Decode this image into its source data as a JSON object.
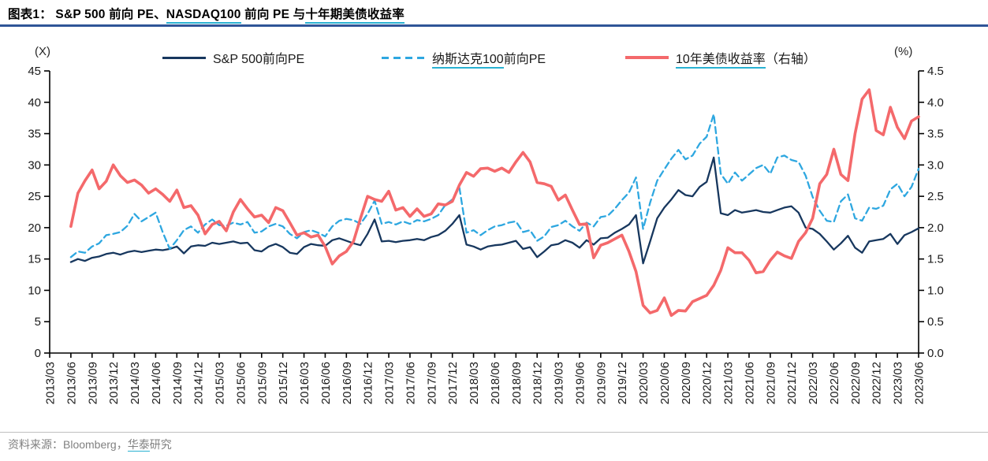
{
  "header": {
    "title_parts": [
      {
        "text": "图表1：  S&P 500 前向 PE、",
        "u": false
      },
      {
        "text": "NASDAQ100",
        "u": true
      },
      {
        "text": " 前向 PE 与",
        "u": false
      },
      {
        "text": "十年期美债收益率",
        "u": true
      }
    ]
  },
  "legend": {
    "left_unit": "(X)",
    "right_unit": "(%)",
    "items": [
      {
        "swatch": "solid-line",
        "color": "#17375e",
        "thickness": 3,
        "label_parts": [
          {
            "text": "S&P 500前向PE",
            "u": false
          }
        ]
      },
      {
        "swatch": "dashed-line",
        "color": "#2ea7e0",
        "thickness": 3,
        "label_parts": [
          {
            "text": "纳斯达克100",
            "u": true
          },
          {
            "text": "前向PE",
            "u": false
          }
        ]
      },
      {
        "swatch": "solid-line",
        "color": "#f4696b",
        "thickness": 4,
        "label_parts": [
          {
            "text": "10年美债收益率",
            "u": true
          },
          {
            "text": "（右轴）",
            "u": false
          }
        ]
      }
    ]
  },
  "chart_data": {
    "type": "line",
    "title": "S&P 500 前向 PE、NASDAQ100 前向 PE 与十年期美债收益率",
    "grid": false,
    "legend_position": "top",
    "left_axis": {
      "unit": "(X)",
      "min": 0,
      "max": 45,
      "step": 5,
      "tick_labels": [
        "0",
        "5",
        "10",
        "15",
        "20",
        "25",
        "30",
        "35",
        "40",
        "45"
      ]
    },
    "right_axis": {
      "unit": "(%)",
      "min": 0.0,
      "max": 4.5,
      "step": 0.5,
      "tick_labels": [
        "0.0",
        "0.5",
        "1.0",
        "1.5",
        "2.0",
        "2.5",
        "3.0",
        "3.5",
        "4.0",
        "4.5"
      ]
    },
    "x_axis": {
      "first_label": "2013/03",
      "last_label": "2023/06",
      "months_total": 123,
      "tick_every_months": 3,
      "tick_labels": [
        "2013/03",
        "2013/06",
        "2013/09",
        "2013/12",
        "2014/03",
        "2014/06",
        "2014/09",
        "2014/12",
        "2015/03",
        "2015/06",
        "2015/09",
        "2015/12",
        "2016/03",
        "2016/06",
        "2016/09",
        "2016/12",
        "2017/03",
        "2017/06",
        "2017/09",
        "2017/12",
        "2018/03",
        "2018/06",
        "2018/09",
        "2018/12",
        "2019/03",
        "2019/06",
        "2019/09",
        "2019/12",
        "2020/03",
        "2020/06",
        "2020/09",
        "2020/12",
        "2021/03",
        "2021/06",
        "2021/09",
        "2021/12",
        "2022/03",
        "2022/06",
        "2022/09",
        "2022/12",
        "2023/03",
        "2023/06"
      ]
    },
    "series": [
      {
        "name": "S&P 500前向PE",
        "axis": "left",
        "color": "#17375e",
        "dash": false,
        "width": 2.3,
        "start_label": "2013/06",
        "start_month": 3,
        "interval": "monthly",
        "values": [
          14.5,
          15.0,
          14.7,
          15.2,
          15.4,
          15.8,
          16.0,
          15.7,
          16.1,
          16.3,
          16.1,
          16.3,
          16.5,
          16.4,
          16.6,
          17.0,
          15.9,
          17.0,
          17.2,
          17.1,
          17.6,
          17.4,
          17.6,
          17.8,
          17.5,
          17.6,
          16.4,
          16.2,
          17.0,
          17.4,
          16.9,
          16.0,
          15.8,
          16.9,
          17.4,
          17.2,
          17.1,
          18.0,
          18.3,
          17.9,
          17.5,
          17.2,
          19.0,
          21.3,
          17.8,
          17.9,
          17.7,
          17.9,
          18.0,
          18.2,
          18.0,
          18.5,
          18.8,
          19.5,
          20.6,
          22.0,
          17.3,
          17.0,
          16.5,
          17.0,
          17.2,
          17.3,
          17.6,
          17.9,
          16.6,
          16.9,
          15.3,
          16.2,
          17.2,
          17.4,
          18.0,
          17.6,
          16.8,
          18.0,
          17.3,
          18.3,
          18.4,
          19.2,
          19.8,
          20.5,
          22.0,
          14.3,
          17.8,
          21.5,
          23.2,
          24.5,
          26.0,
          25.2,
          25.0,
          26.5,
          27.3,
          31.2,
          22.3,
          22.0,
          22.8,
          22.4,
          22.6,
          22.8,
          22.5,
          22.4,
          22.8,
          23.2,
          23.4,
          22.4,
          20.0,
          19.8,
          19.0,
          17.8,
          16.5,
          17.5,
          18.7,
          16.8,
          16.0,
          17.8,
          18.0,
          18.2,
          19.0,
          17.4,
          18.8,
          19.3,
          19.9
        ]
      },
      {
        "name": "纳斯达克100前向PE",
        "axis": "left",
        "color": "#2ea7e0",
        "dash": true,
        "width": 2.3,
        "start_label": "2013/06",
        "start_month": 3,
        "interval": "monthly",
        "values": [
          15.3,
          16.2,
          16.0,
          17.0,
          17.5,
          18.8,
          19.0,
          19.3,
          20.3,
          22.2,
          21.0,
          21.7,
          22.4,
          19.3,
          16.6,
          18.0,
          19.6,
          20.2,
          19.2,
          20.5,
          21.3,
          20.4,
          20.3,
          20.8,
          20.5,
          20.9,
          19.2,
          19.4,
          20.2,
          20.6,
          20.2,
          19.0,
          18.3,
          19.3,
          19.6,
          19.2,
          18.6,
          20.2,
          21.1,
          21.4,
          21.2,
          20.6,
          22.2,
          24.3,
          20.6,
          20.9,
          20.5,
          21.0,
          20.6,
          21.2,
          21.0,
          21.4,
          22.0,
          23.6,
          24.5,
          26.4,
          19.2,
          19.6,
          18.8,
          19.6,
          20.2,
          20.4,
          20.8,
          21.0,
          19.3,
          19.6,
          17.9,
          18.6,
          20.1,
          20.4,
          21.1,
          20.2,
          19.5,
          20.8,
          20.2,
          21.7,
          21.9,
          23.0,
          24.4,
          25.6,
          28.0,
          19.8,
          24.0,
          27.5,
          29.3,
          31.0,
          32.4,
          30.9,
          31.5,
          33.4,
          34.5,
          38.1,
          28.6,
          27.0,
          28.8,
          27.5,
          28.5,
          29.5,
          30.0,
          28.6,
          31.2,
          31.5,
          30.8,
          30.5,
          28.3,
          24.9,
          22.7,
          21.1,
          20.9,
          24.2,
          25.3,
          21.5,
          21.1,
          23.2,
          23.0,
          23.5,
          26.1,
          27.0,
          25.0,
          26.5,
          29.4
        ]
      },
      {
        "name": "10年美债收益率（右轴）",
        "axis": "right",
        "color": "#f4696b",
        "dash": false,
        "width": 3.6,
        "start_label": "2013/06",
        "start_month": 3,
        "interval": "monthly",
        "values": [
          2.02,
          2.55,
          2.75,
          2.92,
          2.62,
          2.74,
          3.0,
          2.83,
          2.72,
          2.76,
          2.68,
          2.55,
          2.62,
          2.53,
          2.42,
          2.6,
          2.32,
          2.35,
          2.2,
          1.9,
          2.05,
          2.1,
          1.95,
          2.25,
          2.45,
          2.3,
          2.17,
          2.2,
          2.08,
          2.32,
          2.27,
          2.08,
          1.88,
          1.92,
          1.85,
          1.88,
          1.7,
          1.42,
          1.55,
          1.62,
          1.78,
          2.15,
          2.5,
          2.45,
          2.42,
          2.58,
          2.28,
          2.32,
          2.18,
          2.3,
          2.18,
          2.22,
          2.38,
          2.36,
          2.42,
          2.68,
          2.88,
          2.82,
          2.94,
          2.95,
          2.9,
          2.95,
          2.88,
          3.05,
          3.2,
          3.05,
          2.72,
          2.7,
          2.66,
          2.44,
          2.52,
          2.28,
          2.05,
          2.06,
          1.52,
          1.72,
          1.76,
          1.82,
          1.88,
          1.62,
          1.3,
          0.76,
          0.64,
          0.68,
          0.88,
          0.6,
          0.68,
          0.67,
          0.82,
          0.87,
          0.92,
          1.08,
          1.32,
          1.68,
          1.6,
          1.6,
          1.48,
          1.28,
          1.3,
          1.48,
          1.61,
          1.55,
          1.51,
          1.78,
          1.92,
          2.15,
          2.7,
          2.85,
          3.25,
          2.85,
          2.75,
          3.5,
          4.05,
          4.2,
          3.55,
          3.48,
          3.92,
          3.6,
          3.42,
          3.7,
          3.77
        ]
      }
    ]
  },
  "footer": {
    "source_parts": [
      {
        "text": "资料来源：Bloomberg，",
        "u": false
      },
      {
        "text": "华泰",
        "u": true
      },
      {
        "text": "研究",
        "u": false
      }
    ]
  },
  "palette": {
    "sp500_navy": "#17375e",
    "nasdaq_blue": "#2ea7e0",
    "treasury_red": "#f4696b",
    "link_underline_teal": "#29b1d2",
    "title_rule_blue": "#2f5597",
    "axis_black": "#000000",
    "footer_gray": "#808080",
    "footer_rule_gray": "#bfbfbf"
  }
}
